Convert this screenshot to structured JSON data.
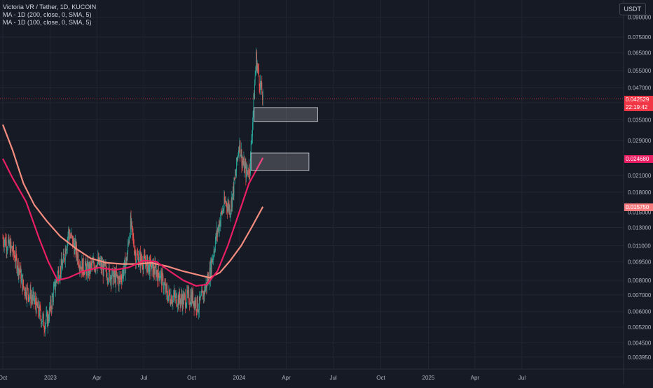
{
  "legend": {
    "title": "Victoria VR / Tether, 1D, KUCOIN",
    "ma1": "MA - 1D (200, close, 0, SMA, 5)",
    "ma2": "MA - 1D (100, close, 0, SMA, 5)"
  },
  "currency": "USDT",
  "colors": {
    "background": "#161a25",
    "grid": "#222632",
    "up": "#26a69a",
    "down": "#ef5350",
    "ma200": "#f48c7f",
    "ma100": "#e91e63",
    "current_price_badge": "#f23645",
    "ma100_badge": "#e91e63",
    "ma200_badge": "#f77c80",
    "axis_text": "#b2b5be"
  },
  "current_price": {
    "value": "0.042529",
    "countdown": "22:19:42"
  },
  "ma100_value": "0.024680",
  "ma200_value": "0.015750",
  "chart_data": {
    "type": "candlestick",
    "y_scale": "log",
    "ylim": [
      0.0038,
      0.092
    ],
    "x_ticks": [
      "Oct",
      "2023",
      "Apr",
      "Jul",
      "Oct",
      "2024",
      "Apr",
      "Jul",
      "Oct",
      "2025",
      "Apr",
      "Jul"
    ],
    "x_tick_dates": [
      "2022-10-01",
      "2023-01-01",
      "2023-04-01",
      "2023-07-01",
      "2023-10-01",
      "2024-01-01",
      "2024-04-01",
      "2024-07-01",
      "2024-10-01",
      "2025-01-01",
      "2025-04-01",
      "2025-07-01"
    ],
    "y_ticks": [
      "0.090000",
      "0.075000",
      "0.065000",
      "0.055000",
      "0.047000",
      "0.041000",
      "0.035000",
      "0.029000",
      "0.024680",
      "0.021000",
      "0.018000",
      "0.015000",
      "0.013000",
      "0.011000",
      "0.009500",
      "0.008000",
      "0.007000",
      "0.006000",
      "0.005200",
      "0.004500",
      "0.003950"
    ],
    "close_series": [
      {
        "date": "2022-10-01",
        "close": 0.0118
      },
      {
        "date": "2022-10-10",
        "close": 0.0112
      },
      {
        "date": "2022-10-20",
        "close": 0.0105
      },
      {
        "date": "2022-11-01",
        "close": 0.009
      },
      {
        "date": "2022-11-10",
        "close": 0.0075
      },
      {
        "date": "2022-11-20",
        "close": 0.0071
      },
      {
        "date": "2022-12-01",
        "close": 0.0066
      },
      {
        "date": "2022-12-10",
        "close": 0.006
      },
      {
        "date": "2022-12-20",
        "close": 0.0054
      },
      {
        "date": "2022-12-28",
        "close": 0.0057
      },
      {
        "date": "2023-01-05",
        "close": 0.0068
      },
      {
        "date": "2023-01-15",
        "close": 0.0085
      },
      {
        "date": "2023-01-25",
        "close": 0.0093
      },
      {
        "date": "2023-02-05",
        "close": 0.0125
      },
      {
        "date": "2023-02-15",
        "close": 0.0112
      },
      {
        "date": "2023-03-01",
        "close": 0.0092
      },
      {
        "date": "2023-03-15",
        "close": 0.0088
      },
      {
        "date": "2023-04-01",
        "close": 0.0095
      },
      {
        "date": "2023-04-15",
        "close": 0.0088
      },
      {
        "date": "2023-05-01",
        "close": 0.0083
      },
      {
        "date": "2023-05-15",
        "close": 0.008
      },
      {
        "date": "2023-05-28",
        "close": 0.0095
      },
      {
        "date": "2023-06-05",
        "close": 0.0135
      },
      {
        "date": "2023-06-15",
        "close": 0.01
      },
      {
        "date": "2023-07-01",
        "close": 0.0095
      },
      {
        "date": "2023-07-15",
        "close": 0.009
      },
      {
        "date": "2023-08-01",
        "close": 0.0085
      },
      {
        "date": "2023-08-15",
        "close": 0.007
      },
      {
        "date": "2023-09-01",
        "close": 0.0068
      },
      {
        "date": "2023-09-15",
        "close": 0.0067
      },
      {
        "date": "2023-10-01",
        "close": 0.0069
      },
      {
        "date": "2023-10-15",
        "close": 0.0063
      },
      {
        "date": "2023-10-25",
        "close": 0.0072
      },
      {
        "date": "2023-11-05",
        "close": 0.0085
      },
      {
        "date": "2023-11-15",
        "close": 0.0112
      },
      {
        "date": "2023-11-25",
        "close": 0.014
      },
      {
        "date": "2023-12-05",
        "close": 0.0165
      },
      {
        "date": "2023-12-15",
        "close": 0.0155
      },
      {
        "date": "2023-12-25",
        "close": 0.021
      },
      {
        "date": "2024-01-01",
        "close": 0.0285
      },
      {
        "date": "2024-01-08",
        "close": 0.0235
      },
      {
        "date": "2024-01-15",
        "close": 0.0215
      },
      {
        "date": "2024-01-22",
        "close": 0.023
      },
      {
        "date": "2024-01-28",
        "close": 0.038
      },
      {
        "date": "2024-02-03",
        "close": 0.062
      },
      {
        "date": "2024-02-07",
        "close": 0.054
      },
      {
        "date": "2024-02-12",
        "close": 0.047
      },
      {
        "date": "2024-02-16",
        "close": 0.042529
      }
    ],
    "ma200": [
      {
        "date": "2022-10-01",
        "value": 0.0335
      },
      {
        "date": "2022-10-20",
        "value": 0.0265
      },
      {
        "date": "2022-11-10",
        "value": 0.0195
      },
      {
        "date": "2022-12-01",
        "value": 0.016
      },
      {
        "date": "2022-12-25",
        "value": 0.0138
      },
      {
        "date": "2023-01-20",
        "value": 0.012
      },
      {
        "date": "2023-02-20",
        "value": 0.0107
      },
      {
        "date": "2023-03-20",
        "value": 0.0098
      },
      {
        "date": "2023-04-20",
        "value": 0.0094
      },
      {
        "date": "2023-05-20",
        "value": 0.0093
      },
      {
        "date": "2023-06-20",
        "value": 0.0093
      },
      {
        "date": "2023-07-15",
        "value": 0.0094
      },
      {
        "date": "2023-08-15",
        "value": 0.0091
      },
      {
        "date": "2023-09-15",
        "value": 0.0087
      },
      {
        "date": "2023-10-15",
        "value": 0.0084
      },
      {
        "date": "2023-11-05",
        "value": 0.0082
      },
      {
        "date": "2023-11-25",
        "value": 0.0086
      },
      {
        "date": "2023-12-15",
        "value": 0.0096
      },
      {
        "date": "2024-01-05",
        "value": 0.011
      },
      {
        "date": "2024-01-25",
        "value": 0.013
      },
      {
        "date": "2024-02-16",
        "value": 0.01575
      }
    ],
    "ma100": [
      {
        "date": "2022-10-01",
        "value": 0.0245
      },
      {
        "date": "2022-10-20",
        "value": 0.0205
      },
      {
        "date": "2022-11-15",
        "value": 0.0165
      },
      {
        "date": "2022-12-10",
        "value": 0.0118
      },
      {
        "date": "2022-12-28",
        "value": 0.0095
      },
      {
        "date": "2023-01-15",
        "value": 0.008
      },
      {
        "date": "2023-02-05",
        "value": 0.0082
      },
      {
        "date": "2023-03-05",
        "value": 0.0087
      },
      {
        "date": "2023-04-05",
        "value": 0.009
      },
      {
        "date": "2023-05-05",
        "value": 0.0088
      },
      {
        "date": "2023-06-01",
        "value": 0.009
      },
      {
        "date": "2023-07-01",
        "value": 0.0096
      },
      {
        "date": "2023-07-25",
        "value": 0.0095
      },
      {
        "date": "2023-08-20",
        "value": 0.0087
      },
      {
        "date": "2023-09-15",
        "value": 0.008
      },
      {
        "date": "2023-10-10",
        "value": 0.0076
      },
      {
        "date": "2023-10-30",
        "value": 0.0077
      },
      {
        "date": "2023-11-20",
        "value": 0.0087
      },
      {
        "date": "2023-12-10",
        "value": 0.011
      },
      {
        "date": "2023-12-30",
        "value": 0.0145
      },
      {
        "date": "2024-01-20",
        "value": 0.0195
      },
      {
        "date": "2024-02-16",
        "value": 0.02468
      }
    ],
    "rectangles": [
      {
        "start": "2024-01-30",
        "end": "2024-06-01",
        "low": 0.0345,
        "high": 0.0392
      },
      {
        "start": "2024-01-24",
        "end": "2024-05-15",
        "low": 0.022,
        "high": 0.0258
      }
    ]
  }
}
